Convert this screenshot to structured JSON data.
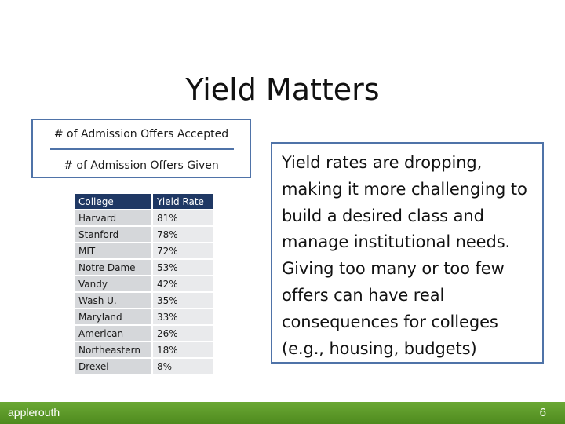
{
  "title": "Yield Matters",
  "formula": {
    "numerator": "# of Admission Offers Accepted",
    "denominator": "# of Admission Offers Given"
  },
  "table": {
    "headers": [
      "College",
      "Yield Rate"
    ],
    "rows": [
      [
        "Harvard",
        "81%"
      ],
      [
        "Stanford",
        "78%"
      ],
      [
        "MIT",
        "72%"
      ],
      [
        "Notre Dame",
        "53%"
      ],
      [
        "Vandy",
        "42%"
      ],
      [
        "Wash U.",
        "35%"
      ],
      [
        "Maryland",
        "33%"
      ],
      [
        "American",
        "26%"
      ],
      [
        "Northeastern",
        "18%"
      ],
      [
        "Drexel",
        "8%"
      ]
    ]
  },
  "callout": {
    "text": "Yield rates are dropping, making it more challenging to build a desired class and manage institutional needs. Giving too many or too few offers can have real consequences for colleges (e.g., housing, budgets)"
  },
  "footer": {
    "brand": "applerouth",
    "page_number": "6"
  },
  "colors": {
    "accent_blue": "#4f73a8",
    "header_navy": "#1f3864",
    "footer_green": "#5a9a28"
  }
}
